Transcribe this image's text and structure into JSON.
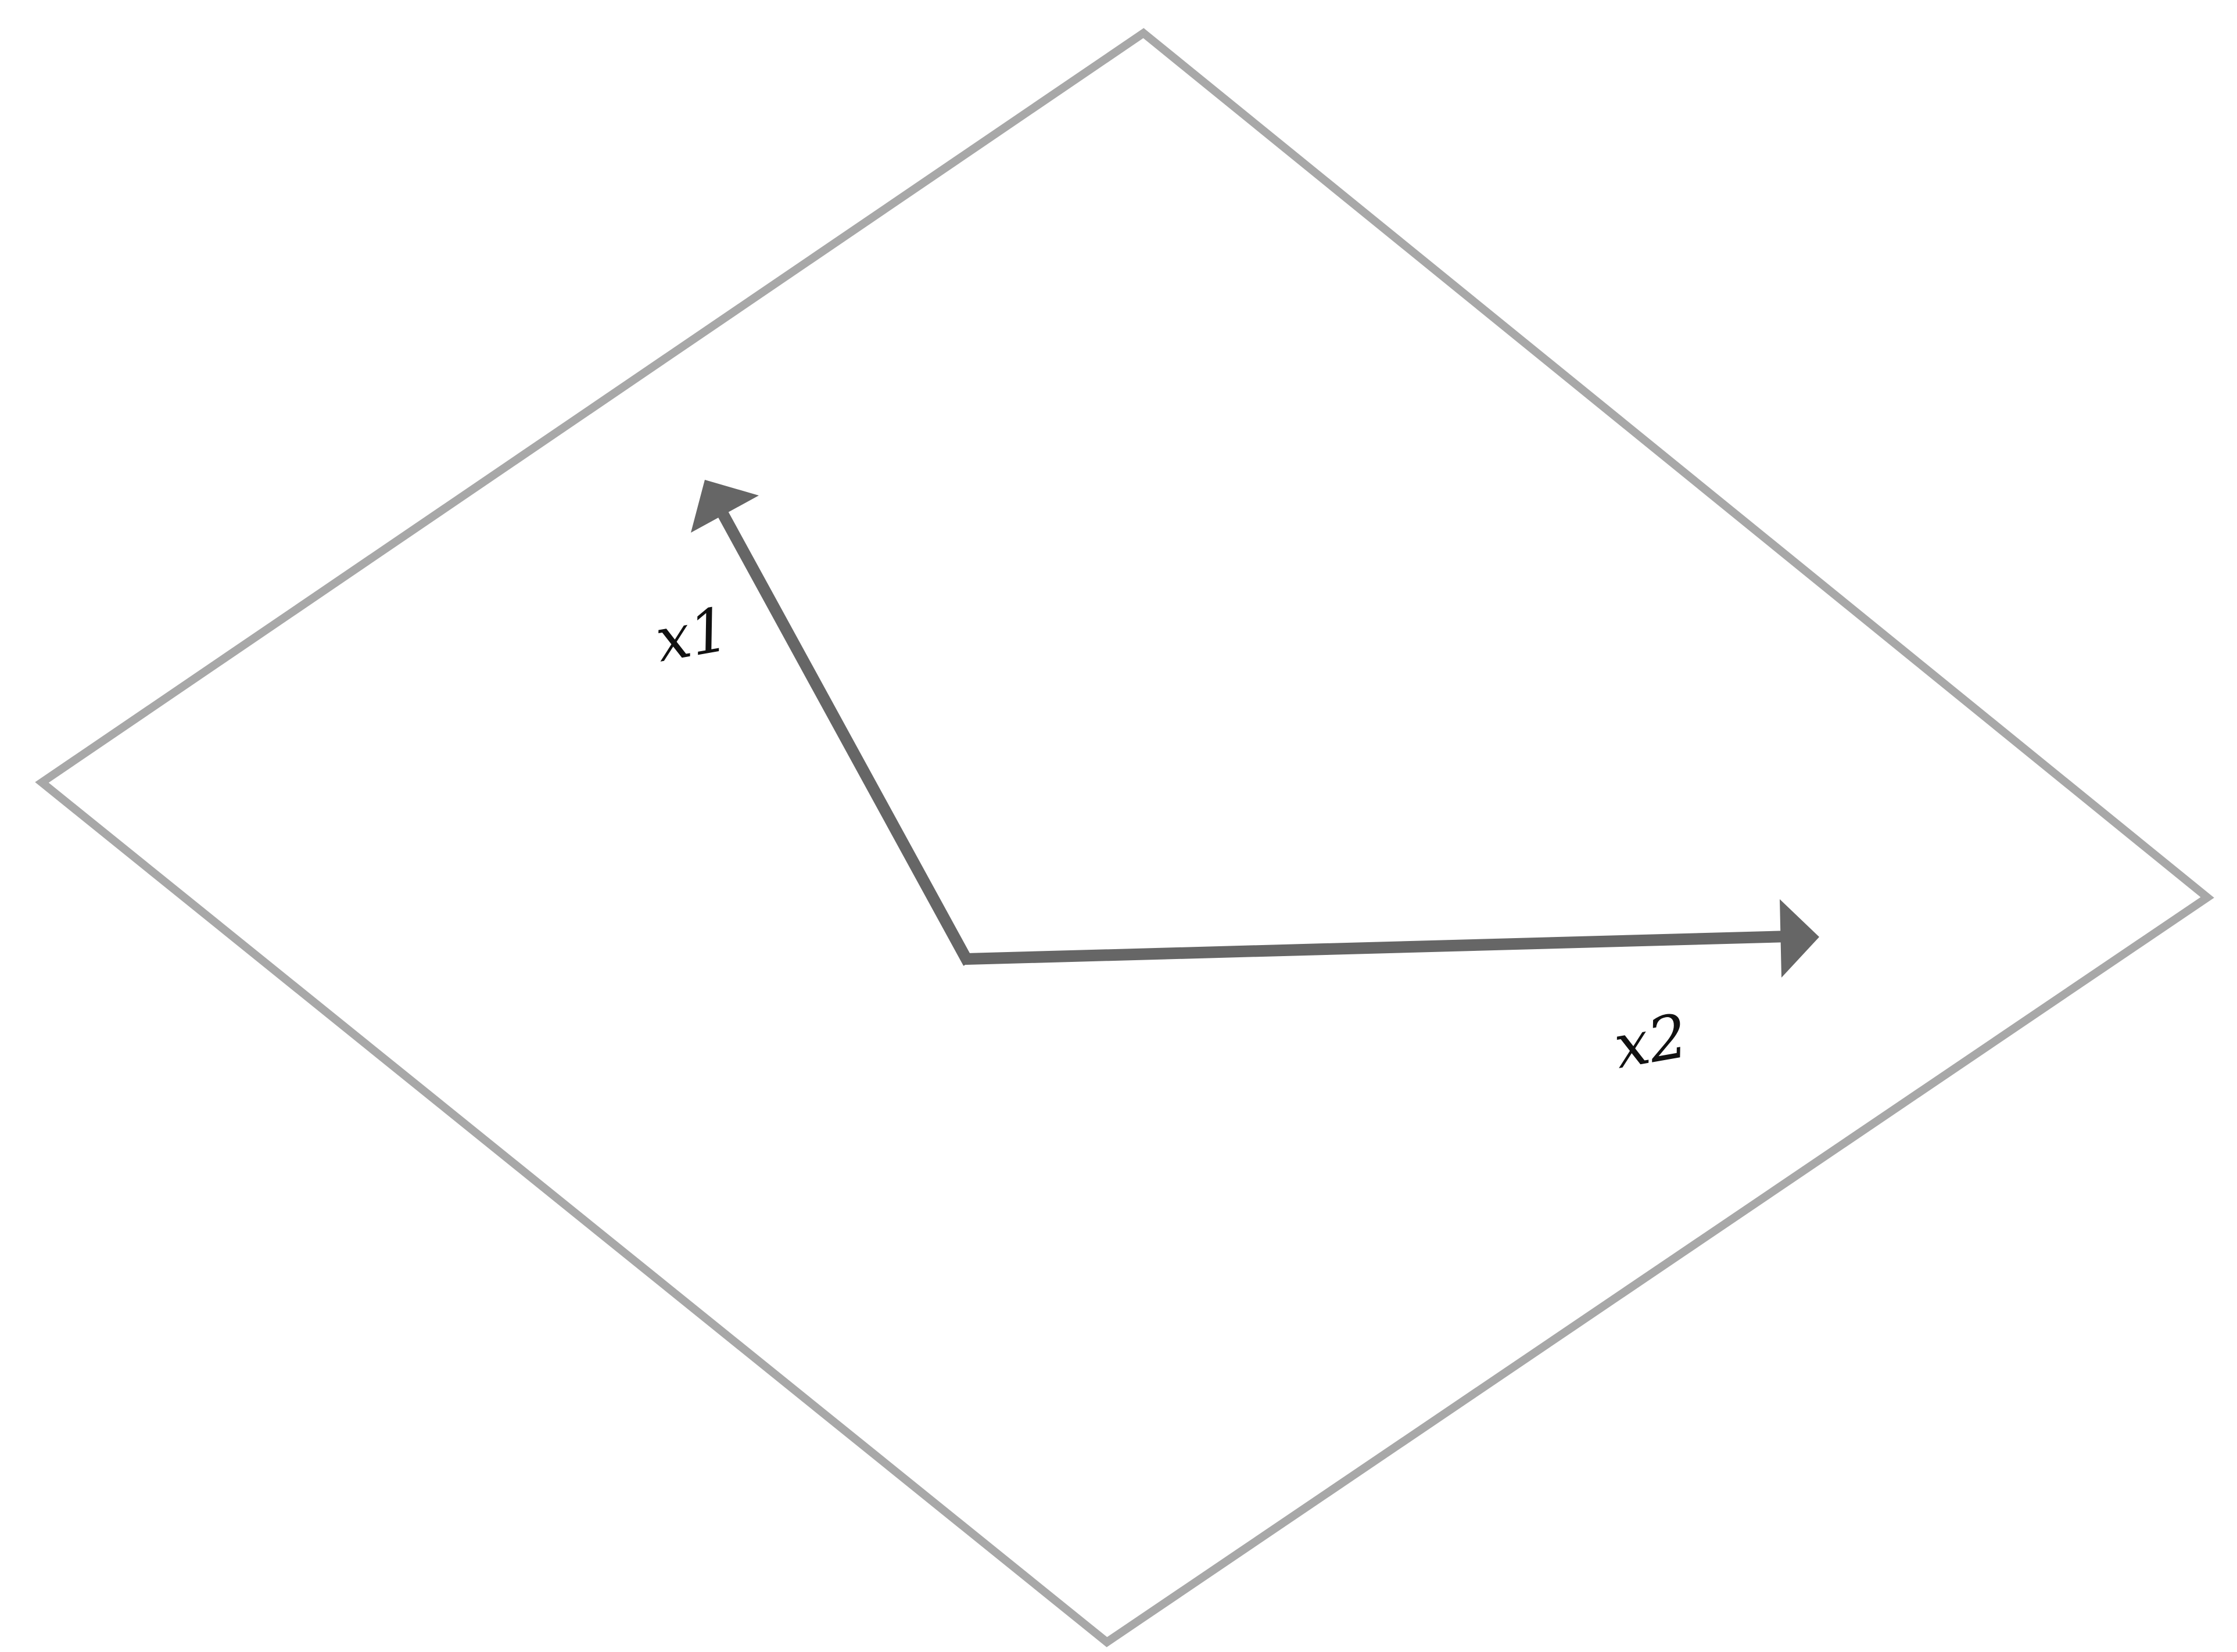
{
  "diagram": {
    "colors": {
      "plane": "#a8a8a8",
      "vector": "#666666",
      "label": "#111111",
      "background": "#ffffff"
    },
    "vectors": [
      {
        "id": "x1",
        "label": "x1"
      },
      {
        "id": "x2",
        "label": "x2"
      }
    ]
  }
}
